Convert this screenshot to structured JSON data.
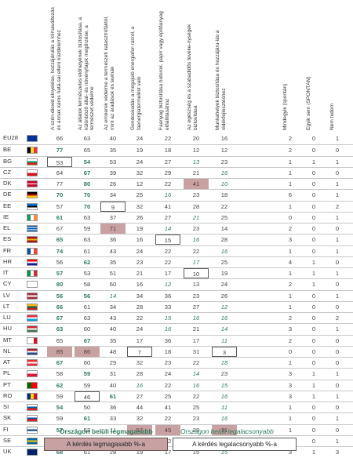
{
  "chart_data": {
    "type": "table",
    "columns": [
      "A szén-dioxid elnyelése, hozzájárulás a klímaváltozás és annak káros hatá-sai elleni küzdelemhez",
      "Az állatok természetes élőhelyének biztosítása, a különböző állat- és növényfajok megőrzése, a természet védelme",
      "Az emberek védelme a természeti katasztrófáktól, mint az áradások és lavinák",
      "Gondoskodás a megújuló energiafor-rásról, a faenergiatermelést való",
      "Faanyag biztosítása bútorok, papír vagy építőanyag előállításához",
      "Az egészség és a szabadidős tevéke-nységek biztosítása",
      "Munkahelyek biztosítása és hozzájáru-lás a vidékfejlesztéshez",
      "Mindegyik (spontán)",
      "Egyik sem (SPONTÁN)",
      "Nem tudom"
    ],
    "rows": [
      {
        "code": "EU28",
        "values": [
          66,
          63,
          40,
          24,
          22,
          20,
          16,
          2,
          0,
          1
        ]
      },
      {
        "code": "BE",
        "values": [
          77,
          65,
          35,
          19,
          18,
          12,
          12,
          2,
          0,
          0
        ]
      },
      {
        "code": "BG",
        "values": [
          53,
          54,
          53,
          24,
          27,
          13,
          23,
          1,
          1,
          1
        ]
      },
      {
        "code": "CZ",
        "values": [
          64,
          67,
          39,
          32,
          29,
          21,
          16,
          1,
          0,
          0
        ]
      },
      {
        "code": "DK",
        "values": [
          77,
          80,
          26,
          12,
          22,
          41,
          10,
          1,
          0,
          1
        ]
      },
      {
        "code": "DE",
        "values": [
          70,
          70,
          34,
          25,
          16,
          23,
          18,
          6,
          0,
          1
        ]
      },
      {
        "code": "EE",
        "values": [
          57,
          70,
          9,
          32,
          41,
          28,
          22,
          1,
          0,
          2
        ]
      },
      {
        "code": "IE",
        "values": [
          61,
          63,
          37,
          26,
          27,
          21,
          25,
          0,
          0,
          1
        ]
      },
      {
        "code": "EL",
        "values": [
          67,
          59,
          71,
          19,
          14,
          23,
          14,
          2,
          0,
          0
        ]
      },
      {
        "code": "ES",
        "values": [
          65,
          63,
          36,
          16,
          15,
          16,
          28,
          3,
          0,
          1
        ]
      },
      {
        "code": "FR",
        "values": [
          74,
          61,
          43,
          24,
          22,
          22,
          16,
          1,
          0,
          1
        ]
      },
      {
        "code": "HR",
        "values": [
          56,
          62,
          35,
          23,
          22,
          17,
          25,
          4,
          1,
          0
        ]
      },
      {
        "code": "IT",
        "values": [
          57,
          53,
          51,
          21,
          17,
          10,
          19,
          1,
          1,
          1
        ]
      },
      {
        "code": "CY",
        "values": [
          80,
          58,
          60,
          16,
          12,
          13,
          24,
          2,
          1,
          0
        ]
      },
      {
        "code": "LV",
        "values": [
          56,
          56,
          14,
          34,
          36,
          23,
          26,
          1,
          0,
          1
        ]
      },
      {
        "code": "LT",
        "values": [
          66,
          61,
          34,
          28,
          33,
          27,
          12,
          1,
          0,
          0
        ]
      },
      {
        "code": "LU",
        "values": [
          67,
          63,
          43,
          22,
          15,
          16,
          16,
          2,
          0,
          2
        ]
      },
      {
        "code": "HU",
        "values": [
          63,
          60,
          40,
          24,
          16,
          21,
          14,
          3,
          0,
          1
        ]
      },
      {
        "code": "MT",
        "values": [
          65,
          67,
          35,
          17,
          36,
          17,
          11,
          2,
          0,
          0
        ]
      },
      {
        "code": "NL",
        "values": [
          85,
          86,
          48,
          7,
          18,
          31,
          3,
          0,
          0,
          0
        ]
      },
      {
        "code": "AT",
        "values": [
          67,
          60,
          29,
          32,
          23,
          22,
          18,
          1,
          0,
          0
        ]
      },
      {
        "code": "PL",
        "values": [
          58,
          59,
          31,
          28,
          24,
          14,
          23,
          3,
          1,
          1
        ]
      },
      {
        "code": "PT",
        "values": [
          62,
          59,
          40,
          16,
          22,
          16,
          15,
          3,
          1,
          0
        ]
      },
      {
        "code": "RO",
        "values": [
          59,
          46,
          61,
          27,
          25,
          22,
          16,
          3,
          1,
          1
        ]
      },
      {
        "code": "SI",
        "values": [
          54,
          50,
          36,
          44,
          41,
          25,
          11,
          1,
          0,
          0
        ]
      },
      {
        "code": "SK",
        "values": [
          59,
          61,
          33,
          32,
          22,
          23,
          16,
          1,
          0,
          1
        ]
      },
      {
        "code": "FI",
        "values": [
          57,
          53,
          11,
          57,
          45,
          23,
          31,
          1,
          0,
          0
        ]
      },
      {
        "code": "SE",
        "values": [
          78,
          72,
          38,
          34,
          22,
          27,
          17,
          2,
          0,
          1
        ]
      },
      {
        "code": "UK",
        "values": [
          68,
          61,
          28,
          19,
          17,
          15,
          15,
          3,
          1,
          3
        ]
      }
    ],
    "legend": {
      "highest_in_country": "Országon belüli legmagasabb",
      "lowest_in_country": "Országon belüli legalacsonyabb",
      "highest_of_question": "A kérdés legmagasabb %-a",
      "lowest_of_question": "A kérdés legalacsonyabb %-a"
    },
    "styles": {
      "BE": [
        "hi",
        "",
        "",
        "",
        "",
        "",
        "",
        "",
        "",
        ""
      ],
      "BG": [
        "mn",
        "hi",
        "",
        "",
        "",
        "lo",
        "",
        "",
        "",
        ""
      ],
      "CZ": [
        "",
        "hi",
        "",
        "",
        "",
        "",
        "lo",
        "",
        "",
        ""
      ],
      "DK": [
        "",
        "hi",
        "",
        "",
        "",
        "mx",
        "lo",
        "",
        "",
        ""
      ],
      "DE": [
        "hi",
        "hi",
        "",
        "",
        "lo",
        "",
        "",
        "",
        "",
        ""
      ],
      "EE": [
        "",
        "hi",
        "mn",
        "",
        "",
        "",
        "",
        "",
        "",
        ""
      ],
      "IE": [
        "hi",
        "",
        "",
        "",
        "",
        "lo",
        "",
        "",
        "",
        ""
      ],
      "EL": [
        "",
        "",
        "mx",
        "",
        "lo",
        "",
        "",
        "",
        "",
        ""
      ],
      "ES": [
        "hi",
        "",
        "",
        "",
        "mn",
        "lo",
        "",
        "",
        "",
        ""
      ],
      "FR": [
        "hi",
        "",
        "",
        "",
        "",
        "",
        "lo",
        "",
        "",
        ""
      ],
      "HR": [
        "",
        "hi",
        "",
        "",
        "",
        "lo",
        "",
        "",
        "",
        ""
      ],
      "IT": [
        "hi",
        "",
        "",
        "",
        "",
        "mn",
        "",
        "",
        "",
        ""
      ],
      "CY": [
        "hi",
        "",
        "",
        "",
        "lo",
        "",
        "",
        "",
        "",
        ""
      ],
      "LV": [
        "hi",
        "hi",
        "lo",
        "",
        "",
        "",
        "",
        "",
        "",
        ""
      ],
      "LT": [
        "hi",
        "",
        "",
        "",
        "",
        "",
        "lo",
        "",
        "",
        ""
      ],
      "LU": [
        "hi",
        "",
        "",
        "",
        "lo",
        "lo",
        "lo",
        "",
        "",
        ""
      ],
      "HU": [
        "hi",
        "",
        "",
        "",
        "lo",
        "",
        "lo",
        "",
        "",
        ""
      ],
      "MT": [
        "",
        "hi",
        "",
        "",
        "",
        "",
        "lo",
        "",
        "",
        ""
      ],
      "NL": [
        "mx",
        "mx",
        "",
        "mn",
        "",
        "",
        "mn",
        "",
        "",
        ""
      ],
      "AT": [
        "hi",
        "",
        "",
        "",
        "",
        "",
        "lo",
        "",
        "",
        ""
      ],
      "PL": [
        "",
        "hi",
        "",
        "",
        "",
        "lo",
        "",
        "",
        "",
        ""
      ],
      "PT": [
        "hi",
        "",
        "",
        "lo",
        "",
        "lo",
        "lo",
        "",
        "",
        ""
      ],
      "RO": [
        "",
        "mn",
        "hi",
        "",
        "",
        "",
        "lo",
        "",
        "",
        ""
      ],
      "SI": [
        "hi",
        "",
        "",
        "",
        "",
        "",
        "lo",
        "",
        "",
        ""
      ],
      "SK": [
        "",
        "hi",
        "",
        "",
        "",
        "",
        "lo",
        "",
        "",
        ""
      ],
      "FI": [
        "hi",
        "",
        "lo",
        "mx",
        "mx",
        "",
        "mx",
        "",
        "",
        ""
      ],
      "SE": [
        "hi",
        "",
        "",
        "",
        "",
        "",
        "lo",
        "",
        "",
        ""
      ],
      "UK": [
        "hi",
        "",
        "",
        "",
        "",
        "",
        "lo",
        "",
        "",
        ""
      ]
    }
  }
}
